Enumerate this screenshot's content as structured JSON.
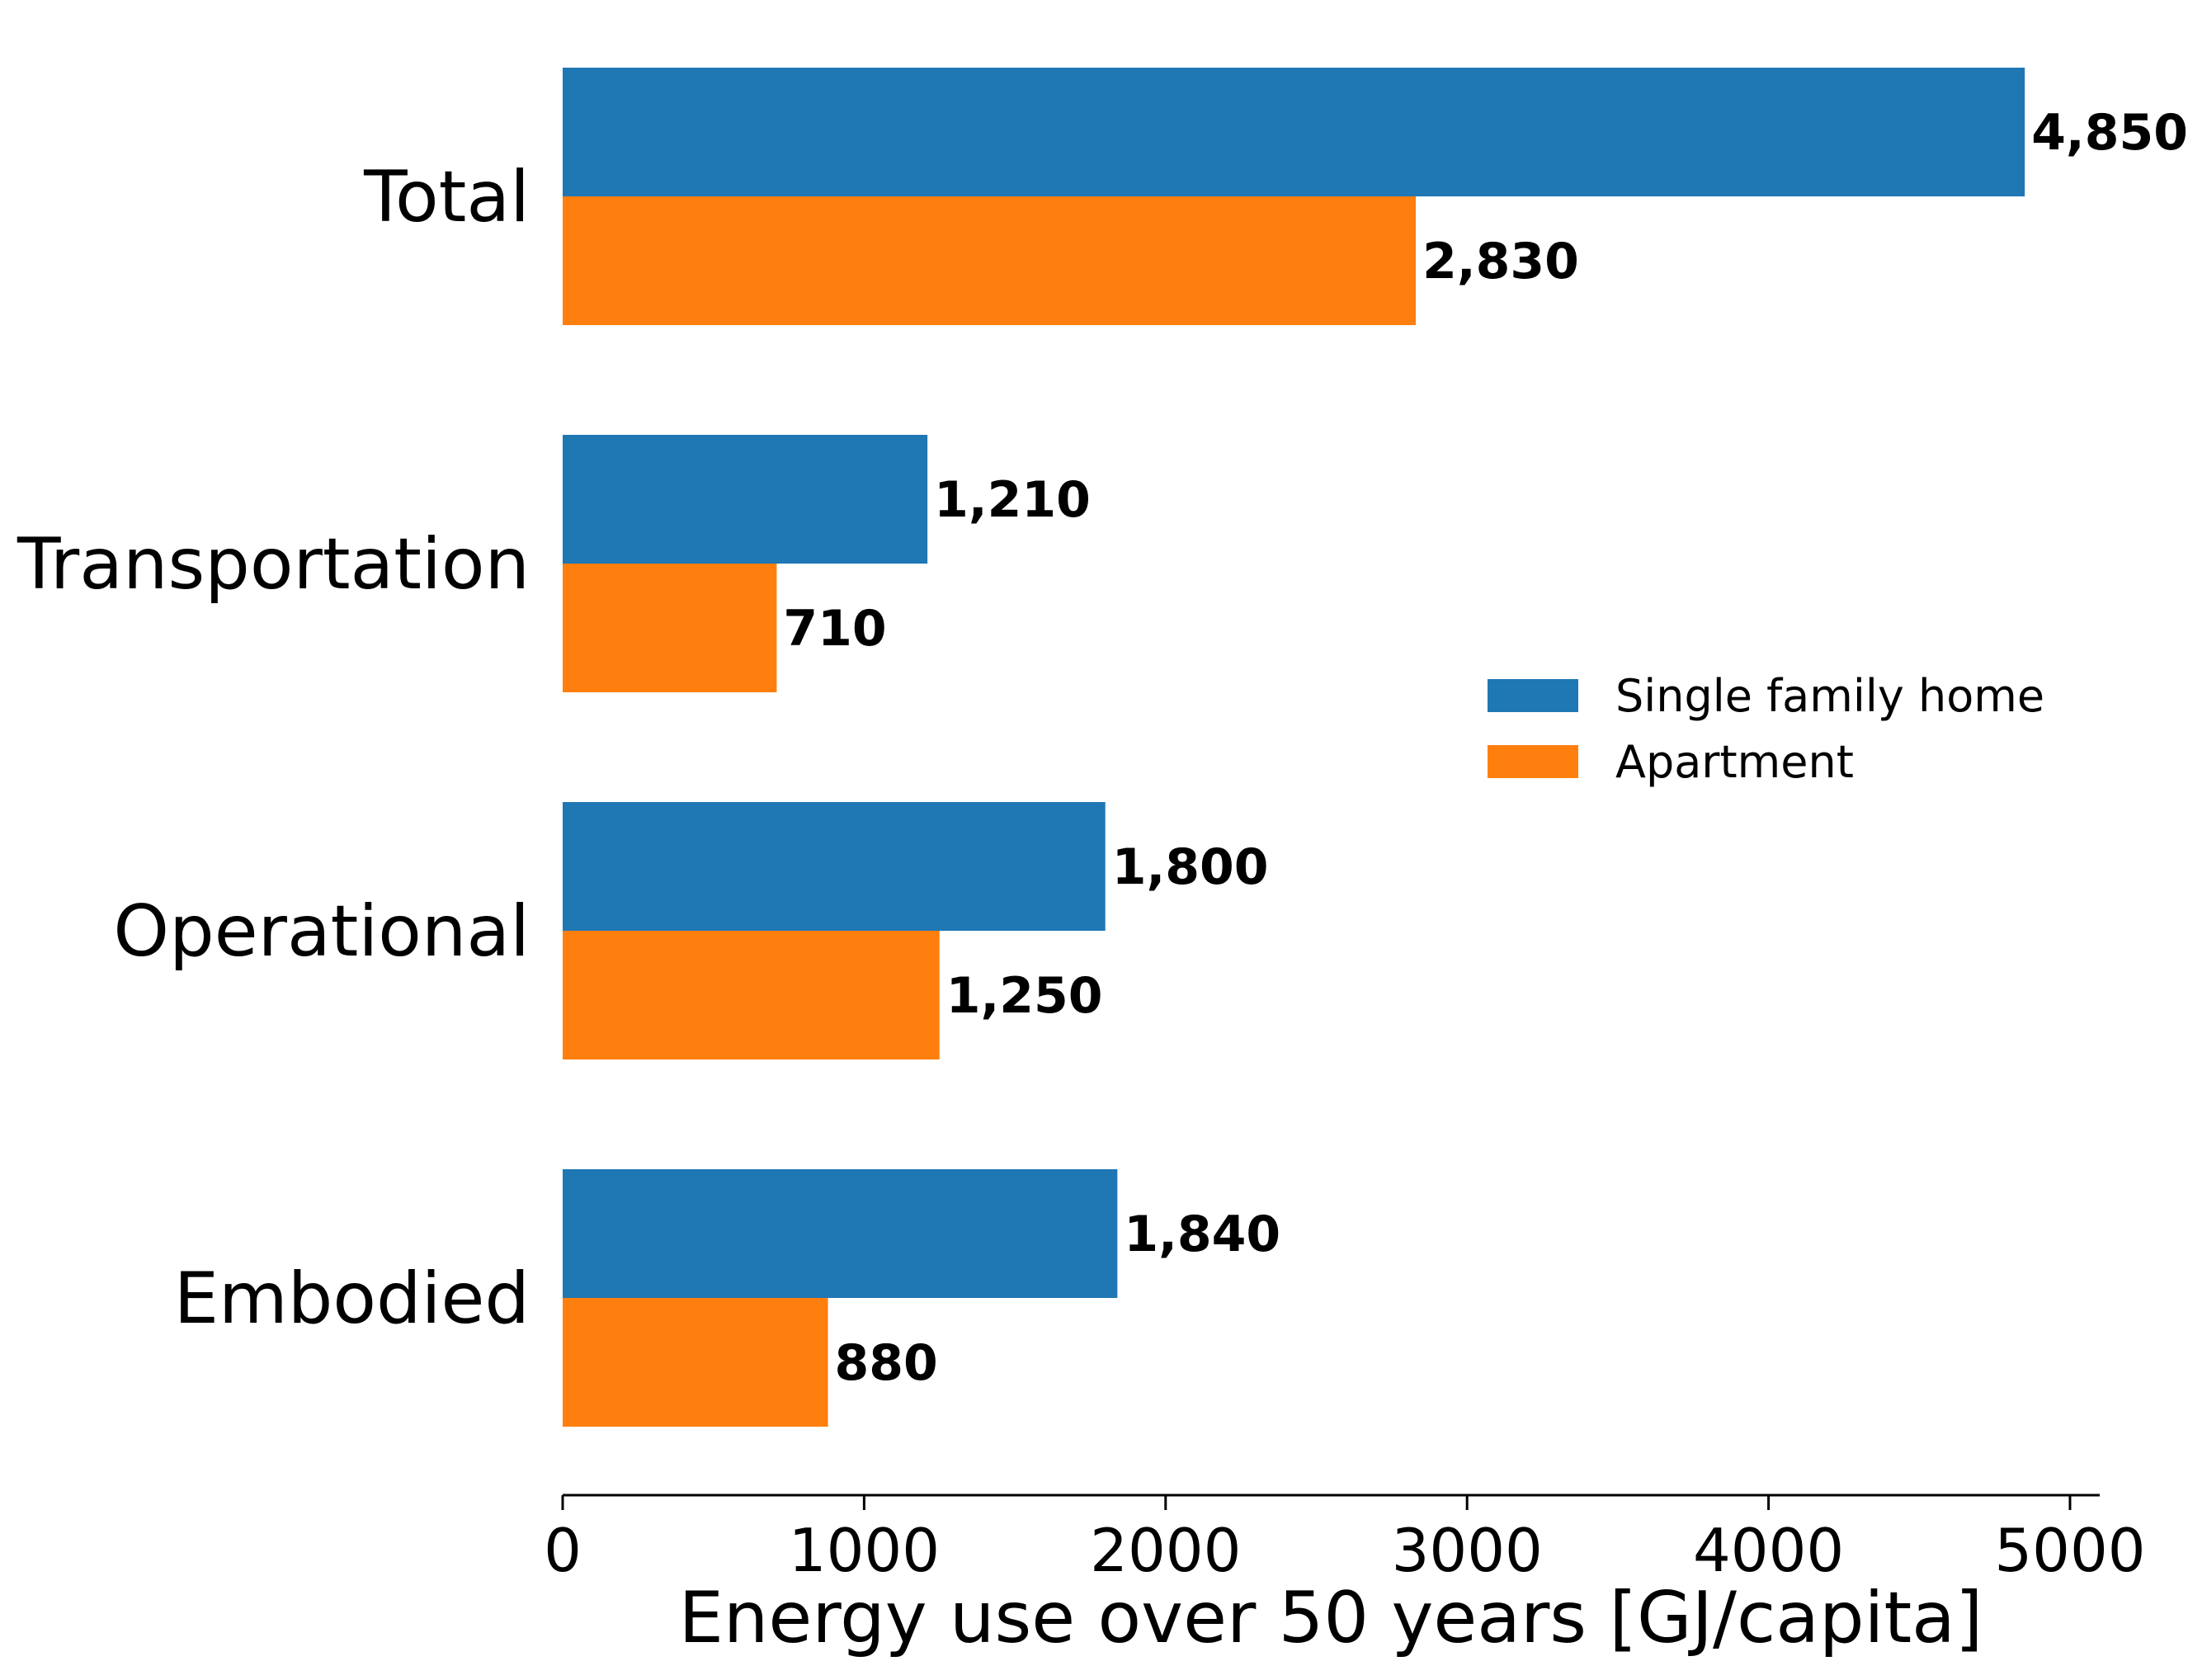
{
  "chart_data": {
    "type": "bar",
    "orientation": "horizontal",
    "categories": [
      "Total",
      "Transportation",
      "Operational",
      "Embodied"
    ],
    "series": [
      {
        "name": "Single family home",
        "color": "#1f77b4",
        "values": [
          4850,
          1210,
          1800,
          1840
        ],
        "labels": [
          "4,850",
          "1,210",
          "1,800",
          "1,840"
        ]
      },
      {
        "name": "Apartment",
        "color": "#ff7f0e",
        "values": [
          2830,
          710,
          1250,
          880
        ],
        "labels": [
          "2,830",
          "710",
          "1,250",
          "880"
        ]
      }
    ],
    "title": "",
    "xlabel": "Energy use over 50 years [GJ/capita]",
    "ylabel": "",
    "xlim": [
      0,
      5100
    ],
    "xticks": [
      0,
      1000,
      2000,
      3000,
      4000,
      5000
    ],
    "xtick_labels": [
      "0",
      "1000",
      "2000",
      "3000",
      "4000",
      "5000"
    ],
    "grid": false,
    "legend_position": "center-right"
  }
}
